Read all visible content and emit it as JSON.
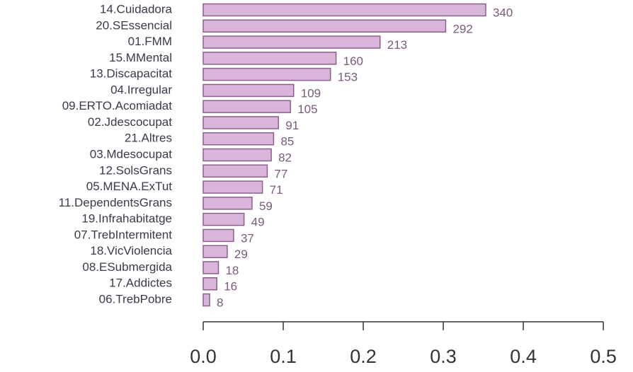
{
  "chart_data": {
    "type": "barh",
    "categories": [
      "14.Cuidadora",
      "20.SEssencial",
      "01.FMM",
      "15.MMental",
      "13.Discapacitat",
      "04.Irregular",
      "09.ERTO.Acomiadat",
      "02.Jdescocupat",
      "21.Altres",
      "03.Mdesocupat",
      "12.SolsGrans",
      "05.MENA.ExTut",
      "11.DependentsGrans",
      "19.Infrahabitatge",
      "07.TrebIntermitent",
      "18.VicViolencia",
      "08.ESubmergida",
      "17.Addictes",
      "06.TrebPobre"
    ],
    "values": [
      0.353,
      0.303,
      0.221,
      0.166,
      0.159,
      0.113,
      0.109,
      0.094,
      0.088,
      0.085,
      0.08,
      0.074,
      0.061,
      0.051,
      0.038,
      0.03,
      0.019,
      0.017,
      0.008
    ],
    "counts": [
      340,
      292,
      213,
      160,
      153,
      109,
      105,
      91,
      85,
      82,
      77,
      71,
      59,
      49,
      37,
      29,
      18,
      16,
      8
    ],
    "color": "#d9b6d9",
    "xlim": [
      0,
      0.53
    ],
    "xticks": [
      {
        "value": 0,
        "label": "0.0"
      },
      0.1,
      0.2,
      0.3,
      0.4,
      0.5
    ]
  }
}
